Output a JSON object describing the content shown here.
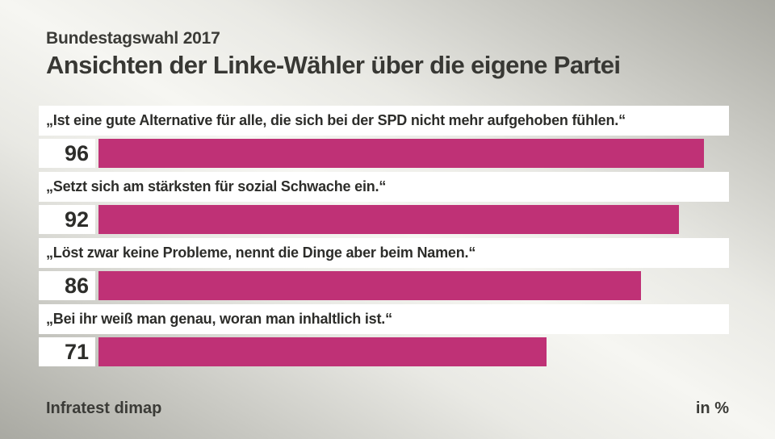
{
  "header": {
    "kicker": "Bundestagswahl 2017",
    "title": "Ansichten der Linke-Wähler über die eigene Partei"
  },
  "footer": {
    "source": "Infratest dimap",
    "unit": "in %"
  },
  "colors": {
    "bar": "#bf3176",
    "strip_background": "#ffffff",
    "text_dark": "#2d2d2a",
    "background_gray": "#a9a9a2",
    "background_light": "#f6f6f2"
  },
  "chart_data": {
    "type": "bar",
    "orientation": "horizontal",
    "title": "Ansichten der Linke-Wähler über die eigene Partei",
    "subtitle": "Bundestagswahl 2017",
    "unit": "in %",
    "source": "Infratest dimap",
    "xlim": [
      0,
      100
    ],
    "grid": false,
    "legend": false,
    "value_labels": "left of bar",
    "categories": [
      "„Ist eine gute Alternative für alle, die sich bei der SPD nicht mehr aufgehoben fühlen.“",
      "„Setzt sich am stärksten für sozial Schwache ein.“",
      "„Löst zwar keine Probleme, nennt die Dinge aber beim Namen.“",
      "„Bei ihr weiß man genau, woran man inhaltlich ist.“"
    ],
    "values": [
      96,
      92,
      86,
      71
    ]
  }
}
